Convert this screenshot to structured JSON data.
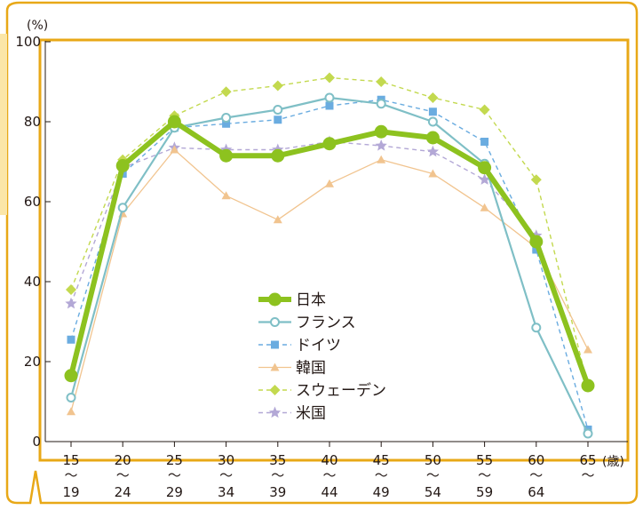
{
  "chart_data": {
    "type": "line",
    "y_unit": "(%)",
    "x_unit": "(歳)",
    "ylim": [
      0,
      100
    ],
    "yticks": [
      "0",
      "20",
      "40",
      "60",
      "80",
      "100"
    ],
    "categories": [
      {
        "top": "15",
        "sep": "〜",
        "bottom": "19"
      },
      {
        "top": "20",
        "sep": "〜",
        "bottom": "24"
      },
      {
        "top": "25",
        "sep": "〜",
        "bottom": "29"
      },
      {
        "top": "30",
        "sep": "〜",
        "bottom": "34"
      },
      {
        "top": "35",
        "sep": "〜",
        "bottom": "39"
      },
      {
        "top": "40",
        "sep": "〜",
        "bottom": "44"
      },
      {
        "top": "45",
        "sep": "〜",
        "bottom": "49"
      },
      {
        "top": "50",
        "sep": "〜",
        "bottom": "54"
      },
      {
        "top": "55",
        "sep": "〜",
        "bottom": "59"
      },
      {
        "top": "60",
        "sep": "〜",
        "bottom": "64"
      },
      {
        "top": "65",
        "sep": "〜",
        "bottom": ""
      }
    ],
    "series": [
      {
        "name": "日本",
        "color": "#8dc21f",
        "marker": "circle-filled",
        "style": "solid-thick",
        "values": [
          16.5,
          69.0,
          80.0,
          71.5,
          71.5,
          74.5,
          77.5,
          76.0,
          68.5,
          50.0,
          14.0
        ]
      },
      {
        "name": "フランス",
        "color": "#7fbfc6",
        "marker": "circle-open",
        "style": "solid",
        "values": [
          11.0,
          58.5,
          78.5,
          81.0,
          83.0,
          86.0,
          84.5,
          80.0,
          69.5,
          28.5,
          2.0
        ]
      },
      {
        "name": "ドイツ",
        "color": "#6aace0",
        "marker": "square",
        "style": "dashed",
        "values": [
          25.5,
          67.0,
          78.5,
          79.5,
          80.5,
          84.0,
          85.5,
          82.5,
          75.0,
          48.0,
          3.0
        ]
      },
      {
        "name": "韓国",
        "color": "#f1c48f",
        "marker": "triangle",
        "style": "solid-thin",
        "values": [
          7.5,
          57.0,
          73.0,
          61.5,
          55.5,
          64.5,
          70.5,
          67.0,
          58.5,
          48.5,
          23.0
        ]
      },
      {
        "name": "スウェーデン",
        "color": "#c3d94f",
        "marker": "diamond",
        "style": "dashed",
        "values": [
          38.0,
          70.5,
          81.5,
          87.5,
          89.0,
          91.0,
          90.0,
          86.0,
          83.0,
          65.5,
          14.0
        ]
      },
      {
        "name": "米国",
        "color": "#b3a8d6",
        "marker": "star",
        "style": "dashed",
        "values": [
          34.5,
          68.5,
          73.5,
          73.0,
          73.0,
          75.0,
          74.0,
          72.5,
          65.5,
          51.5,
          14.0
        ]
      }
    ],
    "legend_order": [
      "日本",
      "フランス",
      "ドイツ",
      "韓国",
      "スウェーデン",
      "米国"
    ],
    "legend_position": "center",
    "grid": false
  },
  "theme": {
    "frame_color": "#e8a817",
    "axis_color": "#231815"
  }
}
